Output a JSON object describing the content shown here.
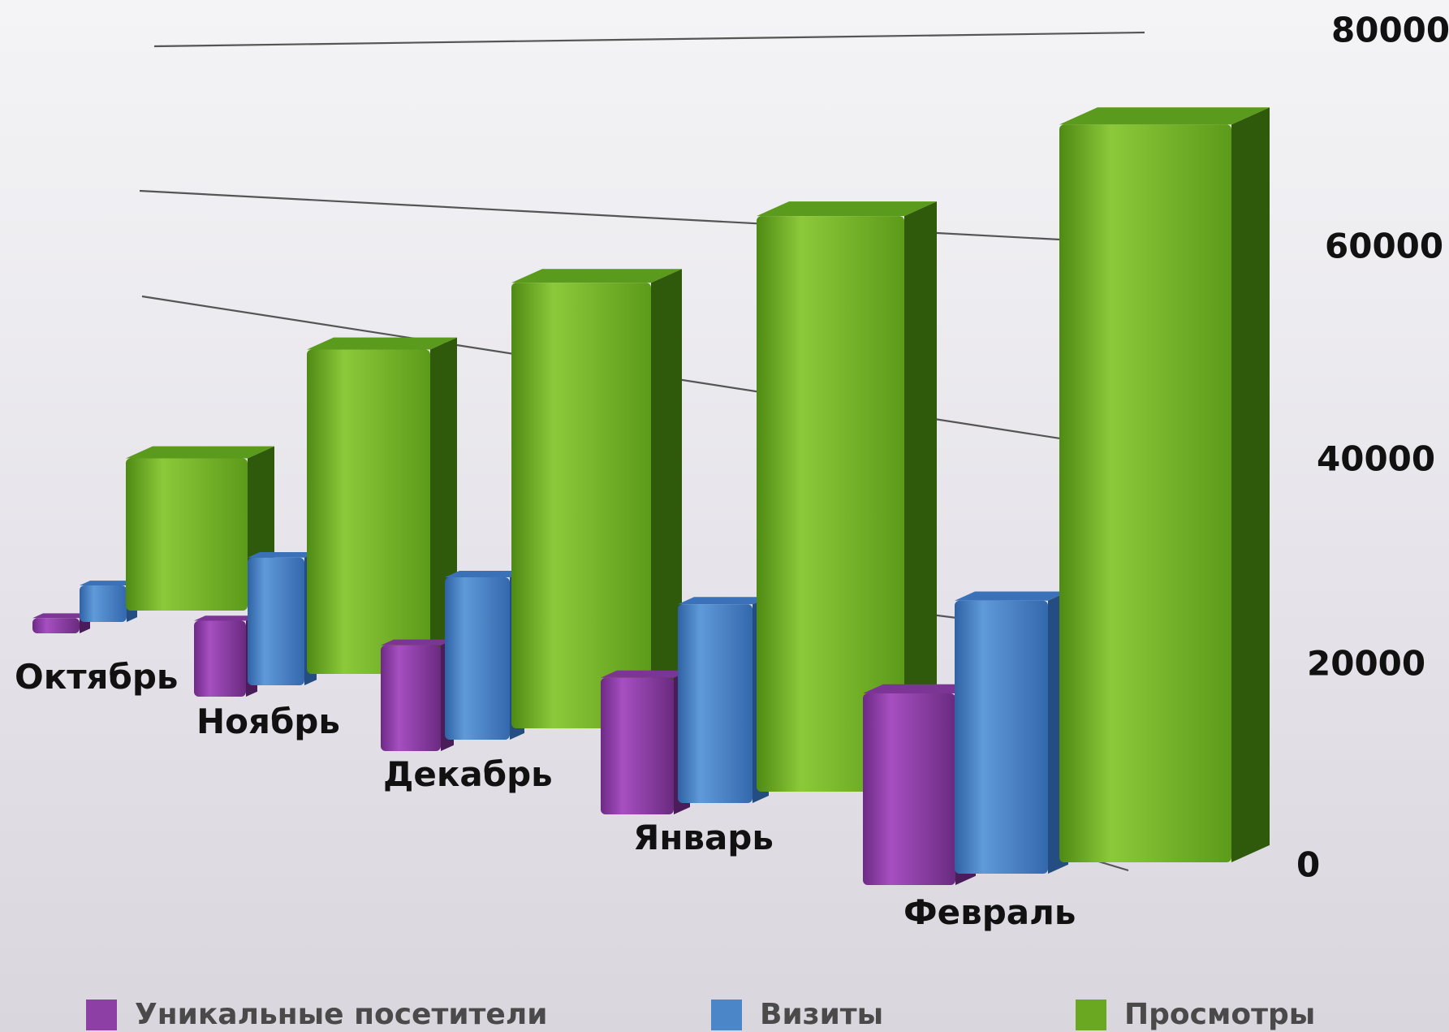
{
  "chart_data": {
    "type": "bar",
    "title": "",
    "xlabel": "",
    "ylabel": "",
    "ylim": [
      0,
      80000
    ],
    "y_ticks": [
      "0",
      "20000",
      "40000",
      "60000",
      "80000"
    ],
    "categories": [
      "Октябрь",
      "Ноябрь",
      "Декабрь",
      "Январь",
      "Февраль"
    ],
    "series": [
      {
        "name": "Уникальные посетители",
        "color": "#8e3fa6",
        "values": [
          2500,
          11000,
          14000,
          16500,
          20000
        ]
      },
      {
        "name": "Визиты",
        "color": "#4a86c8",
        "values": [
          6000,
          18500,
          21500,
          24000,
          28500
        ]
      },
      {
        "name": "Просмотры",
        "color": "#6aa821",
        "values": [
          25000,
          47000,
          59000,
          69500,
          77000
        ]
      }
    ],
    "grid": true,
    "legend": "bottom",
    "y_axis_side": "right",
    "style": "3d perspective columns"
  }
}
